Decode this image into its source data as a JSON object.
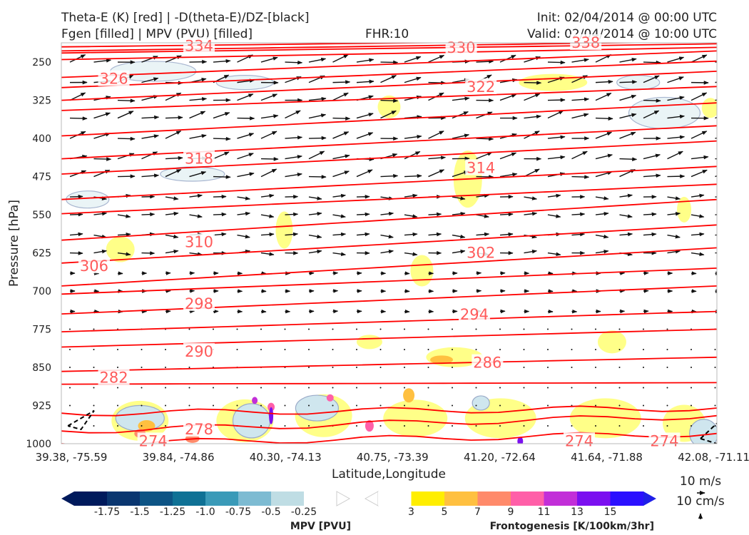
{
  "header": {
    "title_line1": "Theta-E (K) [red] | -D(theta-E)/DZ-[black]",
    "title_line2": "Fgen [filled] | MPV (PVU) [filled]",
    "fhr": "FHR:10",
    "init": "Init: 02/04/2014 @ 00:00 UTC",
    "valid": "Valid: 02/04/2014 @ 10:00 UTC"
  },
  "colors": {
    "theta_e": "#ff0000",
    "theta_label": "#ff5a5a",
    "wind": "#111111",
    "mpv_outline": "#9fb0cc"
  },
  "chart_data": {
    "type": "contour",
    "title": "Theta-E (K) [red] | -D(theta-E)/DZ-[black] | Fgen [filled] | MPV (PVU) [filled]",
    "xlabel": "Latitude,Longitude",
    "ylabel": "Pressure [hPa]",
    "x_ticks": [
      "39.38, -75.59",
      "39.84, -74.86",
      "40.30, -74.13",
      "40.75, -73.39",
      "41.20, -72.64",
      "41.64, -71.88",
      "42.08, -71.11"
    ],
    "y_ticks": [
      "250",
      "325",
      "400",
      "475",
      "550",
      "625",
      "700",
      "775",
      "850",
      "925",
      "1000"
    ],
    "ylim": [
      1000,
      212
    ],
    "y_inverted": true,
    "theta_e_labels": [
      {
        "value": "334",
        "x": 0.21,
        "p": 218
      },
      {
        "value": "330",
        "x": 0.61,
        "p": 222
      },
      {
        "value": "338",
        "x": 0.8,
        "p": 212
      },
      {
        "value": "326",
        "x": 0.08,
        "p": 283
      },
      {
        "value": "322",
        "x": 0.64,
        "p": 299
      },
      {
        "value": "318",
        "x": 0.21,
        "p": 440
      },
      {
        "value": "314",
        "x": 0.64,
        "p": 458
      },
      {
        "value": "310",
        "x": 0.21,
        "p": 604
      },
      {
        "value": "302",
        "x": 0.64,
        "p": 625
      },
      {
        "value": "306",
        "x": 0.05,
        "p": 651
      },
      {
        "value": "298",
        "x": 0.21,
        "p": 725
      },
      {
        "value": "294",
        "x": 0.63,
        "p": 746
      },
      {
        "value": "290",
        "x": 0.21,
        "p": 819
      },
      {
        "value": "286",
        "x": 0.65,
        "p": 841
      },
      {
        "value": "282",
        "x": 0.08,
        "p": 870
      },
      {
        "value": "278",
        "x": 0.21,
        "p": 972
      },
      {
        "value": "274",
        "x": 0.14,
        "p": 995
      },
      {
        "value": "274",
        "x": 0.79,
        "p": 995
      },
      {
        "value": "274",
        "x": 0.92,
        "p": 995
      }
    ],
    "fgen_colorbar": {
      "label": "Frontogenesis [K/100km/3hr]",
      "ticks": [
        "3",
        "5",
        "7",
        "9",
        "11",
        "13",
        "15"
      ],
      "colors": [
        "#ffffff",
        "#ffee00",
        "#ffc040",
        "#ff8a6a",
        "#ff5fa8",
        "#c22fd8",
        "#7b10f0",
        "#2b10ff",
        "#1f1fe8"
      ]
    },
    "mpv_colorbar": {
      "label": "MPV [PVU]",
      "ticks": [
        "-1.75",
        "-1.5",
        "-1.25",
        "-1.0",
        "-0.75",
        "-0.5",
        "-0.25"
      ],
      "colors": [
        "#001a5c",
        "#0a3670",
        "#0d5485",
        "#0f7195",
        "#3a9ab8",
        "#7dbbd2",
        "#bfdde4",
        "#ffffff"
      ]
    },
    "wind_key": {
      "horizontal": "10 m/s",
      "vertical": "10 cm/s"
    }
  }
}
